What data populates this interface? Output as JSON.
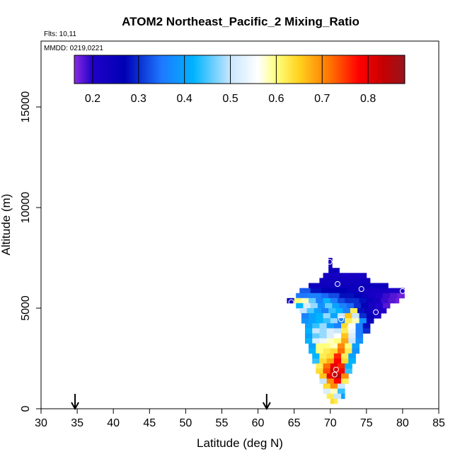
{
  "chart_data": {
    "type": "heatmap",
    "title": "ATOM2 Northeast_Pacific_2 Mixing_Ratio",
    "flights_label": "Flts: 10,11",
    "date_label": "MMDD: 0219,0221",
    "xlabel": "Latitude (deg N)",
    "ylabel": "Altitude (m)",
    "xlim": [
      30,
      85
    ],
    "ylim": [
      0,
      18000
    ],
    "x_ticks": [
      "30",
      "35",
      "40",
      "45",
      "50",
      "55",
      "60",
      "65",
      "70",
      "75",
      "80",
      "85"
    ],
    "y_ticks": [
      "0",
      "5000",
      "10000",
      "15000"
    ],
    "colorbar": {
      "range": [
        0.16,
        0.88
      ],
      "tick_labels": [
        "0.2",
        "0.3",
        "0.4",
        "0.5",
        "0.6",
        "0.7",
        "0.8"
      ],
      "stops": [
        {
          "v": 0.16,
          "c": "#8a2be2"
        },
        {
          "v": 0.2,
          "c": "#1f00c8"
        },
        {
          "v": 0.27,
          "c": "#0000b4"
        },
        {
          "v": 0.35,
          "c": "#1e78ff"
        },
        {
          "v": 0.42,
          "c": "#00b4ff"
        },
        {
          "v": 0.5,
          "c": "#c8e6ff"
        },
        {
          "v": 0.56,
          "c": "#ffffff"
        },
        {
          "v": 0.6,
          "c": "#ffff7d"
        },
        {
          "v": 0.65,
          "c": "#ffd21e"
        },
        {
          "v": 0.72,
          "c": "#ff6e00"
        },
        {
          "v": 0.78,
          "c": "#ff0000"
        },
        {
          "v": 0.83,
          "c": "#c80000"
        },
        {
          "v": 0.88,
          "c": "#96141e"
        }
      ]
    },
    "arrows_lat": [
      34.7,
      61.2
    ],
    "cell": {
      "dlat": 0.5,
      "dalt": 250
    },
    "rows": [
      {
        "alt": 7375,
        "lat0": 69.75,
        "v": [
          0.22
        ]
      },
      {
        "alt": 7125,
        "lat0": 69.75,
        "v": [
          0.22
        ]
      },
      {
        "alt": 6875,
        "lat0": 69.75,
        "v": [
          0.24,
          0.24,
          0.24
        ]
      },
      {
        "alt": 6625,
        "lat0": 69.0,
        "v": [
          0.22,
          0.22,
          0.22,
          0.22,
          0.22,
          0.22,
          0.22,
          0.22,
          0.22,
          0.22,
          0.22,
          0.22
        ]
      },
      {
        "alt": 6375,
        "lat0": 68.5,
        "v": [
          0.23,
          0.23,
          0.23,
          0.23,
          0.23,
          0.23,
          0.23,
          0.23,
          0.23,
          0.23,
          0.23,
          0.23,
          0.23,
          0.23
        ]
      },
      {
        "alt": 6125,
        "lat0": 67.0,
        "v": [
          0.24,
          0.24,
          0.24,
          0.24,
          0.24,
          0.24,
          0.24,
          0.24,
          0.24,
          0.24,
          0.24,
          0.24,
          0.24,
          0.24,
          0.24,
          0.24,
          0.24,
          0.24,
          0.24,
          0.24,
          0.24,
          0.24
        ]
      },
      {
        "alt": 5875,
        "lat0": 65.75,
        "v": [
          0.33,
          0.33,
          0.33,
          0.28,
          0.28,
          0.28,
          0.27,
          0.27,
          0.27,
          0.27,
          0.27,
          0.27,
          0.27,
          0.25,
          0.25,
          0.25,
          0.23,
          0.23,
          0.23,
          0.22,
          0.22,
          0.22,
          0.22,
          0.22,
          0.21,
          0.21,
          0.2,
          0.2,
          0.2
        ]
      },
      {
        "alt": 5625,
        "lat0": 64.25,
        "v": [
          0.55,
          0.55,
          0.35,
          0.35,
          0.35,
          0.36,
          0.36,
          0.36,
          0.36,
          0.34,
          0.34,
          0.32,
          0.32,
          0.32,
          0.28,
          0.28,
          0.28,
          0.28,
          0.27,
          0.27,
          0.24,
          0.24,
          0.22,
          0.22,
          0.2,
          0.2,
          0.19,
          0.19,
          0.18,
          0.18,
          0.17,
          0.17
        ]
      },
      {
        "alt": 5375,
        "lat0": 64.0,
        "v": [
          0.24,
          0.24,
          0.6,
          0.6,
          0.58,
          0.58,
          0.46,
          0.46,
          0.36,
          0.36,
          0.42,
          0.42,
          0.36,
          0.36,
          0.32,
          0.32,
          0.3,
          0.3,
          0.3,
          0.3,
          0.28,
          0.28,
          0.24,
          0.24,
          0.22,
          0.22,
          0.19,
          0.19,
          0.18,
          0.18,
          0.17
        ]
      },
      {
        "alt": 5125,
        "lat0": 65.25,
        "v": [
          0.42,
          0.42,
          0.52,
          0.52,
          0.48,
          0.48,
          0.38,
          0.38,
          0.46,
          0.46,
          0.4,
          0.4,
          0.36,
          0.36,
          0.34,
          0.34,
          0.3,
          0.3,
          0.26,
          0.26,
          0.22,
          0.22,
          0.2,
          0.2,
          0.18,
          0.18
        ]
      },
      {
        "alt": 4875,
        "lat0": 65.75,
        "v": [
          0.5,
          0.5,
          0.45,
          0.45,
          0.4,
          0.4,
          0.36,
          0.36,
          0.44,
          0.44,
          0.42,
          0.42,
          0.36,
          0.36,
          0.62,
          0.62,
          0.28,
          0.28,
          0.24,
          0.24,
          0.22,
          0.22,
          0.2,
          0.2
        ]
      },
      {
        "alt": 4625,
        "lat0": 66.0,
        "v": [
          0.36,
          0.36,
          0.4,
          0.4,
          0.42,
          0.42,
          0.48,
          0.48,
          0.4,
          0.4,
          0.5,
          0.5,
          0.66,
          0.66,
          0.5,
          0.5,
          0.3,
          0.3,
          0.26,
          0.26,
          0.22,
          0.22
        ]
      },
      {
        "alt": 4375,
        "lat0": 66.0,
        "v": [
          0.38,
          0.38,
          0.4,
          0.4,
          0.42,
          0.42,
          0.44,
          0.44,
          0.48,
          0.48,
          0.36,
          0.36,
          0.62,
          0.62,
          0.58,
          0.58,
          0.38,
          0.38,
          0.24,
          0.24
        ]
      },
      {
        "alt": 4125,
        "lat0": 66.5,
        "v": [
          0.4,
          0.4,
          0.44,
          0.44,
          0.48,
          0.48,
          0.4,
          0.4,
          0.36,
          0.36,
          0.64,
          0.64,
          0.56,
          0.56,
          0.36,
          0.36,
          0.28,
          0.28
        ]
      },
      {
        "alt": 3875,
        "lat0": 66.5,
        "v": [
          0.42,
          0.42,
          0.5,
          0.5,
          0.48,
          0.48,
          0.52,
          0.52,
          0.5,
          0.5,
          0.62,
          0.62,
          0.54,
          0.54,
          0.36,
          0.36,
          0.3,
          0.3
        ]
      },
      {
        "alt": 3625,
        "lat0": 66.5,
        "v": [
          0.4,
          0.4,
          0.46,
          0.46,
          0.48,
          0.48,
          0.52,
          0.52,
          0.56,
          0.56,
          0.66,
          0.66,
          0.52,
          0.52,
          0.36,
          0.36
        ]
      },
      {
        "alt": 3375,
        "lat0": 66.5,
        "v": [
          0.42,
          0.42,
          0.52,
          0.52,
          0.54,
          0.54,
          0.58,
          0.58,
          0.6,
          0.6,
          0.68,
          0.68,
          0.5,
          0.5,
          0.38,
          0.38
        ]
      },
      {
        "alt": 3125,
        "lat0": 67.0,
        "v": [
          0.4,
          0.4,
          0.6,
          0.6,
          0.6,
          0.6,
          0.58,
          0.58,
          0.7,
          0.7,
          0.6,
          0.6,
          0.4,
          0.4
        ]
      },
      {
        "alt": 2875,
        "lat0": 67.0,
        "v": [
          0.42,
          0.42,
          0.6,
          0.6,
          0.62,
          0.62,
          0.64,
          0.64,
          0.72,
          0.72,
          0.62,
          0.62,
          0.38,
          0.38
        ]
      },
      {
        "alt": 2625,
        "lat0": 67.5,
        "v": [
          0.42,
          0.42,
          0.62,
          0.62,
          0.64,
          0.64,
          0.76,
          0.76,
          0.62,
          0.62,
          0.4,
          0.4
        ]
      },
      {
        "alt": 2375,
        "lat0": 67.5,
        "v": [
          0.44,
          0.44,
          0.64,
          0.64,
          0.68,
          0.68,
          0.78,
          0.78,
          0.64,
          0.64,
          0.42,
          0.42
        ]
      },
      {
        "alt": 2125,
        "lat0": 68.0,
        "v": [
          0.62,
          0.62,
          0.72,
          0.72,
          0.8,
          0.8,
          0.76,
          0.76,
          0.42,
          0.42
        ]
      },
      {
        "alt": 1875,
        "lat0": 68.0,
        "v": [
          0.64,
          0.64,
          0.74,
          0.74,
          0.82,
          0.82,
          0.78,
          0.78,
          0.44,
          0.44
        ]
      },
      {
        "alt": 1625,
        "lat0": 68.5,
        "v": [
          0.66,
          0.66,
          0.8,
          0.8,
          0.84,
          0.84,
          0.7,
          0.7
        ]
      },
      {
        "alt": 1375,
        "lat0": 68.5,
        "v": [
          0.5,
          0.5,
          0.7,
          0.7,
          0.78,
          0.78,
          0.62,
          0.62
        ]
      },
      {
        "alt": 1125,
        "lat0": 69.0,
        "v": [
          0.64,
          0.64,
          0.7,
          0.7,
          0.5,
          0.5
        ]
      },
      {
        "alt": 875,
        "lat0": 69.0,
        "v": [
          0.52,
          0.52,
          0.58,
          0.58,
          0.44,
          0.44
        ]
      },
      {
        "alt": 625,
        "lat0": 69.5,
        "v": [
          0.62,
          0.62,
          0.5,
          0.5,
          0.4
        ]
      },
      {
        "alt": 375,
        "lat0": 70.0,
        "v": [
          0.64,
          0.62
        ]
      }
    ],
    "points": [
      {
        "lat": 69.9,
        "alt": 7300
      },
      {
        "lat": 71.0,
        "alt": 6200
      },
      {
        "lat": 74.3,
        "alt": 5950
      },
      {
        "lat": 80.0,
        "alt": 5850
      },
      {
        "lat": 64.6,
        "alt": 5300
      },
      {
        "lat": 76.3,
        "alt": 4800
      },
      {
        "lat": 71.5,
        "alt": 4450
      },
      {
        "lat": 72.7,
        "alt": 4050
      },
      {
        "lat": 70.8,
        "alt": 1950
      },
      {
        "lat": 70.6,
        "alt": 1700
      }
    ]
  }
}
